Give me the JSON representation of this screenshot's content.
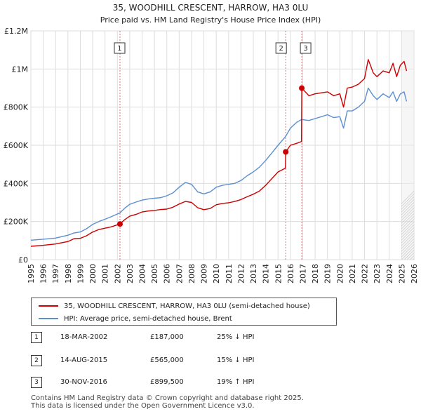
{
  "chart_data": {
    "type": "line",
    "title": "35, WOODHILL CRESCENT, HARROW, HA3 0LU",
    "subtitle": "Price paid vs. HM Land Registry's House Price Index (HPI)",
    "xlim": [
      1995,
      2026
    ],
    "ylim": [
      0,
      1200000
    ],
    "y_ticks": [
      {
        "value": 0,
        "label": "£0"
      },
      {
        "value": 200000,
        "label": "£200K"
      },
      {
        "value": 400000,
        "label": "£400K"
      },
      {
        "value": 600000,
        "label": "£600K"
      },
      {
        "value": 800000,
        "label": "£800K"
      },
      {
        "value": 1000000,
        "label": "£1M"
      },
      {
        "value": 1200000,
        "label": "£1.2M"
      }
    ],
    "x_ticks": [
      "1995",
      "1996",
      "1997",
      "1998",
      "1999",
      "2000",
      "2001",
      "2002",
      "2003",
      "2004",
      "2005",
      "2006",
      "2007",
      "2008",
      "2009",
      "2010",
      "2011",
      "2012",
      "2013",
      "2014",
      "2015",
      "2016",
      "2017",
      "2018",
      "2019",
      "2020",
      "2021",
      "2022",
      "2023",
      "2024",
      "2025",
      "2026"
    ],
    "series": [
      {
        "name": "35, WOODHILL CRESCENT, HARROW, HA3 0LU (semi-detached house)",
        "color": "#cc0000",
        "x": [
          1995.0,
          1996.0,
          1997.0,
          1998.0,
          1998.5,
          1999.0,
          1999.5,
          2000.0,
          2000.5,
          2001.0,
          2001.5,
          2002.2,
          2002.6,
          2003.0,
          2003.5,
          2004.0,
          2004.5,
          2005.0,
          2005.5,
          2006.0,
          2006.5,
          2007.0,
          2007.5,
          2008.0,
          2008.5,
          2009.0,
          2009.5,
          2010.0,
          2010.5,
          2011.0,
          2011.5,
          2012.0,
          2012.5,
          2013.0,
          2013.5,
          2014.0,
          2014.5,
          2015.0,
          2015.6,
          2015.62,
          2016.0,
          2016.5,
          2016.9,
          2016.92,
          2017.5,
          2018.0,
          2018.5,
          2019.0,
          2019.5,
          2020.0,
          2020.3,
          2020.6,
          2021.0,
          2021.5,
          2022.0,
          2022.3,
          2022.7,
          2023.0,
          2023.5,
          2024.0,
          2024.3,
          2024.6,
          2024.9,
          2025.2,
          2025.4
        ],
        "values": [
          70000,
          75000,
          82000,
          95000,
          110000,
          112000,
          125000,
          145000,
          158000,
          165000,
          172000,
          187000,
          210000,
          228000,
          237000,
          250000,
          255000,
          258000,
          263000,
          265000,
          275000,
          292000,
          305000,
          300000,
          272000,
          262000,
          268000,
          288000,
          295000,
          298000,
          305000,
          315000,
          330000,
          343000,
          360000,
          390000,
          425000,
          460000,
          480000,
          565000,
          600000,
          610000,
          620000,
          899500,
          860000,
          870000,
          875000,
          880000,
          860000,
          870000,
          800000,
          900000,
          905000,
          920000,
          950000,
          1050000,
          980000,
          960000,
          990000,
          980000,
          1030000,
          960000,
          1020000,
          1040000,
          990000
        ]
      },
      {
        "name": "HPI: Average price, semi-detached house, Brent",
        "color": "#5b8fd0",
        "x": [
          1995.0,
          1996.0,
          1997.0,
          1998.0,
          1998.5,
          1999.0,
          1999.5,
          2000.0,
          2000.5,
          2001.0,
          2001.5,
          2002.2,
          2002.6,
          2003.0,
          2003.5,
          2004.0,
          2004.5,
          2005.0,
          2005.5,
          2006.0,
          2006.5,
          2007.0,
          2007.5,
          2008.0,
          2008.5,
          2009.0,
          2009.5,
          2010.0,
          2010.5,
          2011.0,
          2011.5,
          2012.0,
          2012.5,
          2013.0,
          2013.5,
          2014.0,
          2014.5,
          2015.0,
          2015.6,
          2016.0,
          2016.5,
          2016.9,
          2017.5,
          2018.0,
          2018.5,
          2019.0,
          2019.5,
          2020.0,
          2020.3,
          2020.6,
          2021.0,
          2021.5,
          2022.0,
          2022.3,
          2022.7,
          2023.0,
          2023.5,
          2024.0,
          2024.3,
          2024.6,
          2024.9,
          2025.2,
          2025.4
        ],
        "values": [
          102000,
          107000,
          113000,
          128000,
          140000,
          145000,
          162000,
          185000,
          200000,
          212000,
          225000,
          245000,
          270000,
          290000,
          302000,
          312000,
          318000,
          322000,
          325000,
          335000,
          350000,
          380000,
          405000,
          395000,
          355000,
          345000,
          355000,
          380000,
          390000,
          395000,
          400000,
          415000,
          440000,
          460000,
          485000,
          520000,
          560000,
          600000,
          645000,
          690000,
          720000,
          735000,
          730000,
          740000,
          750000,
          760000,
          745000,
          750000,
          690000,
          780000,
          780000,
          800000,
          830000,
          900000,
          860000,
          840000,
          870000,
          850000,
          880000,
          830000,
          870000,
          880000,
          830000
        ]
      }
    ],
    "transactions": [
      {
        "num": "1",
        "x": 2002.21,
        "value": 187000,
        "date": "18-MAR-2002",
        "price": "£187,000",
        "hpi": "25% ↓ HPI"
      },
      {
        "num": "2",
        "x": 2015.62,
        "value": 565000,
        "date": "14-AUG-2015",
        "price": "£565,000",
        "hpi": "15% ↓ HPI"
      },
      {
        "num": "3",
        "x": 2016.92,
        "value": 899500,
        "date": "30-NOV-2016",
        "price": "£899,500",
        "hpi": "19% ↑ HPI"
      }
    ],
    "hatch_from": 2025.0,
    "legend_position": "below"
  },
  "legend": {
    "price_label": "35, WOODHILL CRESCENT, HARROW, HA3 0LU (semi-detached house)",
    "hpi_label": "HPI: Average price, semi-detached house, Brent"
  },
  "footer": {
    "line1": "Contains HM Land Registry data © Crown copyright and database right 2025.",
    "line2": "This data is licensed under the Open Government Licence v3.0."
  },
  "colors": {
    "price": "#cc0000",
    "hpi": "#5b8fd0",
    "grid": "#dddddd"
  }
}
